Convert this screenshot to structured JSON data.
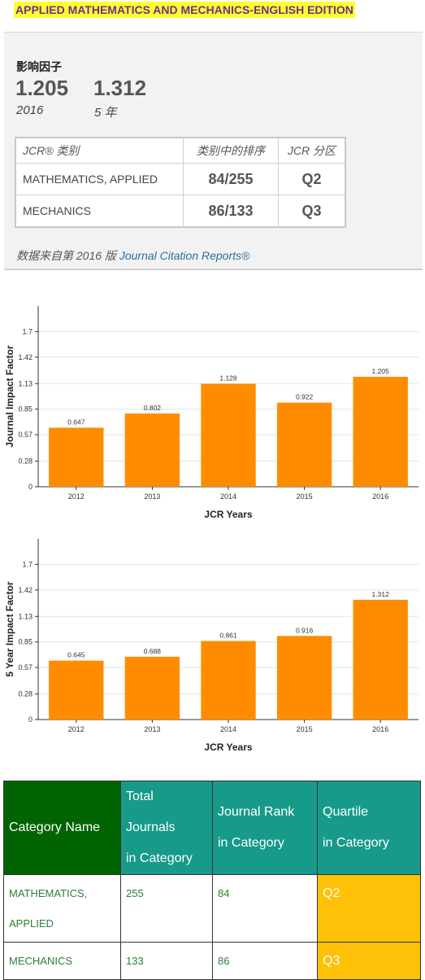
{
  "journal_title": "APPLIED MATHEMATICS AND MECHANICS-ENGLISH EDITION",
  "impact": {
    "label": "影响因子",
    "value_1": "1.205",
    "year_1": "2016",
    "value_2": "1.312",
    "year_2": "5 年"
  },
  "jcr_table": {
    "headers": [
      "JCR® 类别",
      "类别中的排序",
      "JCR 分区"
    ],
    "rows": [
      {
        "category": "MATHEMATICS, APPLIED",
        "rank": "84/255",
        "quartile": "Q2"
      },
      {
        "category": "MECHANICS",
        "rank": "86/133",
        "quartile": "Q3"
      }
    ]
  },
  "source": {
    "prefix": "数据来自第 2016 版",
    "link": "Journal Citation Reports®"
  },
  "chart_data": [
    {
      "type": "bar",
      "categories": [
        "2012",
        "2013",
        "2014",
        "2015",
        "2016"
      ],
      "values": [
        0.647,
        0.802,
        1.128,
        0.922,
        1.205
      ],
      "data_labels": [
        "0.647",
        "0.802",
        "1.128",
        "0.922",
        "1.205"
      ],
      "xlabel": "JCR Years",
      "ylabel": "Journal Impact Factor",
      "yticks": [
        "0",
        "0.28",
        "0.57",
        "0.85",
        "1.13",
        "1.42",
        "1.7"
      ],
      "ylim": [
        0,
        1.98
      ],
      "grid": true,
      "bar_color": "#ff8c00"
    },
    {
      "type": "bar",
      "categories": [
        "2012",
        "2013",
        "2014",
        "2015",
        "2016"
      ],
      "values": [
        0.645,
        0.688,
        0.861,
        0.916,
        1.312
      ],
      "data_labels": [
        "0.645",
        "0.688",
        "0.861",
        "0.916",
        "1.312"
      ],
      "xlabel": "JCR Years",
      "ylabel": "5 Year Impact Factor",
      "yticks": [
        "0",
        "0.28",
        "0.57",
        "0.85",
        "1.13",
        "1.42",
        "1.7"
      ],
      "ylim": [
        0,
        1.98
      ],
      "grid": true,
      "bar_color": "#ff8c00"
    }
  ],
  "category_table": {
    "headers": {
      "h0": "Category Name",
      "h1_l1": "Total",
      "h1_l2": "Journals",
      "h1_l3": "in Category",
      "h2_l1": "Journal Rank",
      "h2_l2": "in Category",
      "h3_l1": "Quartile",
      "h3_l2": "in Category"
    },
    "rows": [
      {
        "name_l1": "MATHEMATICS,",
        "name_l2": "APPLIED",
        "total": "255",
        "rank": "84",
        "quartile": "Q2"
      },
      {
        "name_l1": "MECHANICS",
        "name_l2": "",
        "total": "133",
        "rank": "86",
        "quartile": "Q3"
      }
    ]
  },
  "colors": {
    "title_highlight": "#ffff2e",
    "title_text": "#6b2f8e",
    "bar": "#ff8c00",
    "header_dark_green": "#006400",
    "header_teal": "#179a8a",
    "quartile_fill": "#ffc107"
  }
}
